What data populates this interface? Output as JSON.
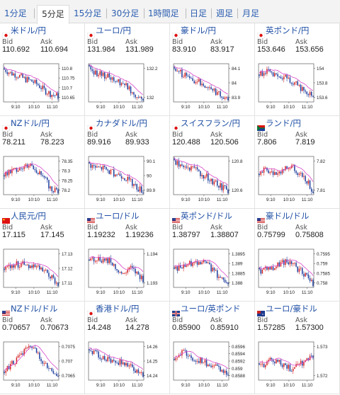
{
  "tabs": [
    "1分足",
    "5分足",
    "15分足",
    "30分足",
    "1時間足",
    "日足",
    "週足",
    "月足"
  ],
  "active_tab": 1,
  "labels": {
    "bid": "Bid",
    "ask": "Ask"
  },
  "pairs": [
    {
      "name": "米ドル/円",
      "flag": "japan-flag-icon",
      "bid": "110.692",
      "ask": "110.694",
      "yticks": [
        "110.8",
        "110.75",
        "110.7",
        "110.65"
      ],
      "xticks": [
        "9:10",
        "10:10",
        "11:10"
      ]
    },
    {
      "name": "ユーロ/円",
      "flag": "japan-flag-icon",
      "bid": "131.984",
      "ask": "131.989",
      "yticks": [
        "132.2",
        "132"
      ],
      "xticks": [
        "9:10",
        "10:10",
        "11:10"
      ]
    },
    {
      "name": "豪ドル/円",
      "flag": "japan-flag-icon",
      "bid": "83.910",
      "ask": "83.917",
      "yticks": [
        "84.1",
        "84",
        "83.9"
      ],
      "xticks": [
        "9:10",
        "10:10",
        "11:10"
      ]
    },
    {
      "name": "英ポンド/円",
      "flag": "japan-flag-icon",
      "bid": "153.646",
      "ask": "153.656",
      "yticks": [
        "154",
        "153.8",
        "153.6"
      ],
      "xticks": [
        "9:10",
        "10:10",
        "11:10"
      ]
    },
    {
      "name": "NZドル/円",
      "flag": "japan-flag-icon",
      "bid": "78.211",
      "ask": "78.223",
      "yticks": [
        "78.35",
        "78.3",
        "78.25",
        "78.2"
      ],
      "xticks": [
        "9:10",
        "10:10",
        "11:10"
      ]
    },
    {
      "name": "カナダドル/円",
      "flag": "japan-flag-icon",
      "bid": "89.916",
      "ask": "89.933",
      "yticks": [
        "90.1",
        "90",
        "89.9"
      ],
      "xticks": [
        "9:10",
        "10:10",
        "11:10"
      ]
    },
    {
      "name": "スイスフラン/円",
      "flag": "japan-flag-icon",
      "bid": "120.488",
      "ask": "120.506",
      "yticks": [
        "120.8",
        "120.6"
      ],
      "xticks": [
        "9:10",
        "10:10",
        "11:10"
      ]
    },
    {
      "name": "ランド/円",
      "flag": "southafrica-flag-icon",
      "bid": "7.806",
      "ask": "7.819",
      "yticks": [
        "7.82",
        "7.81"
      ],
      "xticks": [
        "9:10",
        "10:10",
        "11:10"
      ]
    },
    {
      "name": "人民元/円",
      "flag": "china-flag-icon",
      "bid": "17.115",
      "ask": "17.145",
      "yticks": [
        "17.13",
        "17.12",
        "17.11"
      ],
      "xticks": [
        "9:10",
        "10:10",
        "11:10"
      ]
    },
    {
      "name": "ユーロ/ドル",
      "flag": "usa-flag-icon",
      "bid": "1.19232",
      "ask": "1.19236",
      "yticks": [
        "1.194",
        "1.193"
      ],
      "xticks": [
        "9:10",
        "10:10",
        "11:10"
      ]
    },
    {
      "name": "英ポンド/ドル",
      "flag": "usa-flag-icon",
      "bid": "1.38797",
      "ask": "1.38807",
      "yticks": [
        "1.3895",
        "1.389",
        "1.3885",
        "1.388"
      ],
      "xticks": [
        "9:10",
        "10:10",
        "11:10"
      ]
    },
    {
      "name": "豪ドル/ドル",
      "flag": "usa-flag-icon",
      "bid": "0.75799",
      "ask": "0.75808",
      "yticks": [
        "0.7595",
        "0.759",
        "0.7585",
        "0.758"
      ],
      "xticks": [
        "9:10",
        "10:10",
        "11:10"
      ]
    },
    {
      "name": "NZドル/ドル",
      "flag": "usa-flag-icon",
      "bid": "0.70657",
      "ask": "0.70673",
      "yticks": [
        "0.7075",
        "0.707",
        "0.7065"
      ],
      "xticks": [
        "9:10",
        "10:10",
        "11:10"
      ]
    },
    {
      "name": "香港ドル/円",
      "flag": "japan-flag-icon",
      "bid": "14.248",
      "ask": "14.278",
      "yticks": [
        "14.26",
        "14.25",
        "14.24"
      ],
      "xticks": [
        "9:10",
        "10:10",
        "11:10"
      ]
    },
    {
      "name": "ユーロ/英ポンド",
      "flag": "uk-flag-icon",
      "bid": "0.85900",
      "ask": "0.85910",
      "yticks": [
        "0.8596",
        "0.8594",
        "0.8592",
        "0.859",
        "0.8588"
      ],
      "xticks": [
        "9:10",
        "10:10",
        "11:10"
      ]
    },
    {
      "name": "ユーロ/豪ドル",
      "flag": "australia-flag-icon",
      "bid": "1.57285",
      "ask": "1.57300",
      "yticks": [
        "1.573",
        "1.572"
      ],
      "xticks": [
        "9:10",
        "10:10",
        "11:10"
      ]
    }
  ],
  "colors": {
    "up": "#d32626",
    "down": "#1f3f9e",
    "ma": "#d946c8",
    "link": "#1f4fa5"
  }
}
